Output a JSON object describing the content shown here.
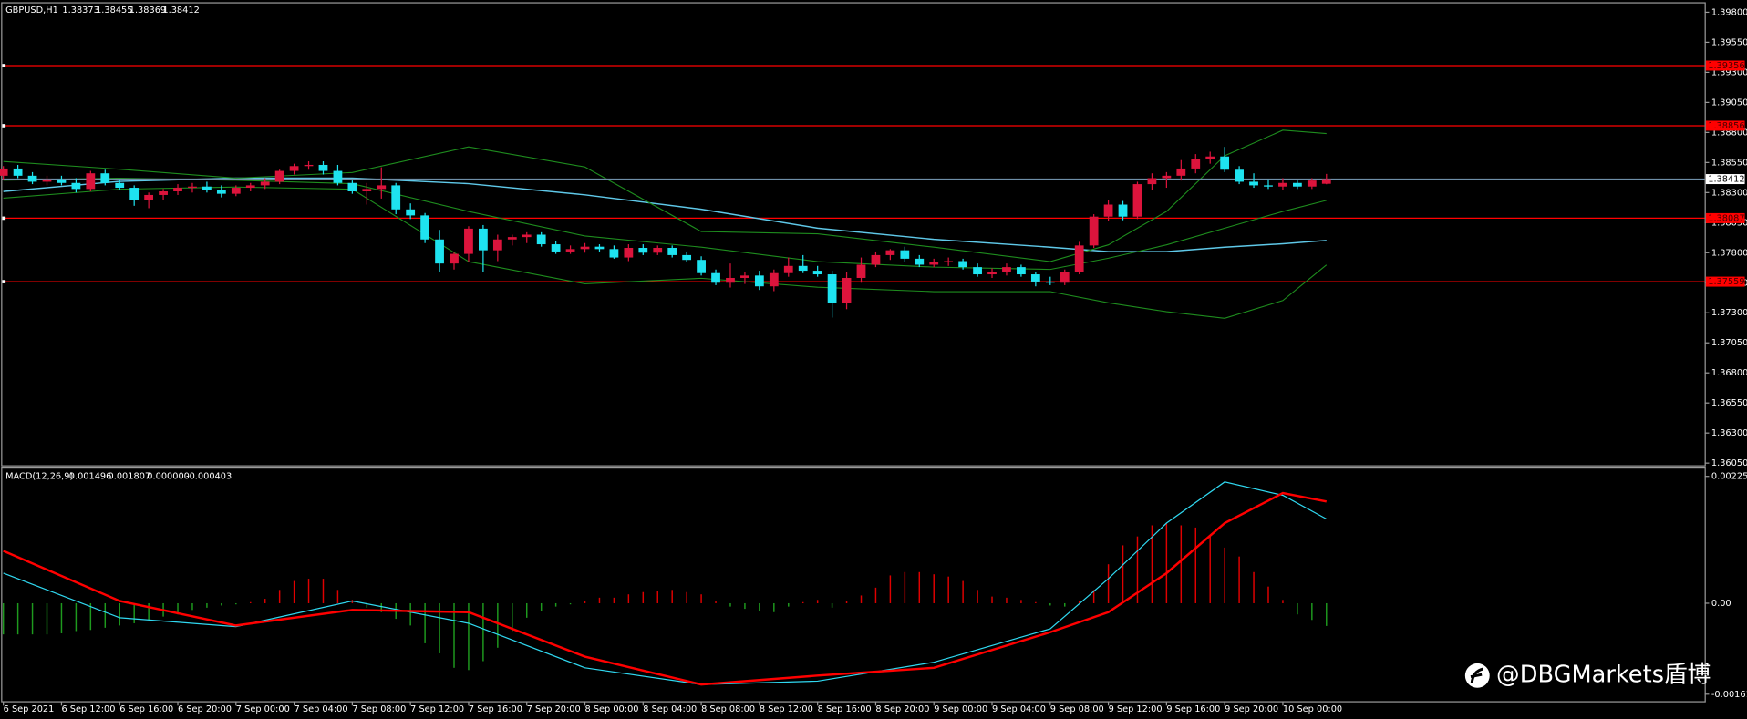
{
  "chart_data": [
    {
      "type": "candlestick",
      "symbol": "GBPUSD,H1",
      "categories": [
        "6 Sep 2021",
        null,
        null,
        null,
        "6 Sep 12:00",
        null,
        null,
        null,
        "6 Sep 16:00",
        null,
        null,
        null,
        "6 Sep 20:00",
        null,
        null,
        null,
        "7 Sep 00:00",
        null,
        null,
        null,
        "7 Sep 04:00",
        null,
        null,
        null,
        "7 Sep 08:00",
        null,
        null,
        null,
        "7 Sep 12:00",
        null,
        null,
        null,
        "7 Sep 16:00",
        null,
        null,
        null,
        "7 Sep 20:00",
        null,
        null,
        null,
        "8 Sep 00:00",
        null,
        null,
        null,
        "8 Sep 04:00",
        null,
        null,
        null,
        "8 Sep 08:00",
        null,
        null,
        null,
        "8 Sep 12:00",
        null,
        null,
        null,
        "8 Sep 16:00",
        null,
        null,
        null,
        "8 Sep 20:00",
        null,
        null,
        null,
        "9 Sep 00:00",
        null,
        null,
        null,
        "9 Sep 04:00",
        null,
        null,
        null,
        "9 Sep 08:00",
        null,
        null,
        null,
        "9 Sep 12:00",
        null,
        null,
        null,
        "9 Sep 16:00",
        null,
        null,
        null,
        "9 Sep 20:00",
        null,
        null,
        null,
        "10 Sep 00:00",
        null,
        null,
        null
      ],
      "open": [
        1.3844,
        1.385,
        1.3844,
        1.3839,
        1.3841,
        1.3838,
        1.3833,
        1.3846,
        1.3838,
        1.3834,
        1.3824,
        1.3828,
        1.3831,
        1.3834,
        1.3835,
        1.3832,
        1.3829,
        1.3834,
        1.3836,
        1.3839,
        1.3848,
        1.3852,
        1.3853,
        1.3848,
        1.3838,
        1.3831,
        1.3833,
        1.3836,
        1.3816,
        1.3811,
        1.3791,
        1.3771,
        1.3779,
        1.38,
        1.3782,
        1.3791,
        1.3793,
        1.3795,
        1.3787,
        1.3781,
        1.3783,
        1.3785,
        1.3783,
        1.3776,
        1.3784,
        1.378,
        1.3784,
        1.3778,
        1.3774,
        1.3763,
        1.3755,
        1.3759,
        1.3761,
        1.3752,
        1.3763,
        1.3769,
        1.3765,
        1.3762,
        1.3738,
        1.3759,
        1.377,
        1.3778,
        1.3782,
        1.3775,
        1.377,
        1.3772,
        1.3773,
        1.3768,
        1.3762,
        1.3764,
        1.3768,
        1.3762,
        1.3756,
        1.3755,
        1.3764,
        1.3786,
        1.381,
        1.382,
        1.381,
        1.3837,
        1.3842,
        1.3844,
        1.385,
        1.3858,
        1.386,
        1.3849,
        1.3839,
        1.3836,
        1.3835,
        1.3838,
        1.3835,
        1.38373
      ],
      "high": [
        1.3852,
        1.3853,
        1.3847,
        1.3844,
        1.3844,
        1.3842,
        1.3848,
        1.3849,
        1.3841,
        1.3836,
        1.383,
        1.3833,
        1.3837,
        1.3838,
        1.3839,
        1.3836,
        1.3836,
        1.3838,
        1.3842,
        1.3849,
        1.3854,
        1.3856,
        1.3856,
        1.3853,
        1.384,
        1.3838,
        1.3851,
        1.3838,
        1.3821,
        1.3813,
        1.3799,
        1.378,
        1.3802,
        1.3803,
        1.3795,
        1.3795,
        1.3797,
        1.3797,
        1.379,
        1.3786,
        1.3788,
        1.3787,
        1.3786,
        1.3787,
        1.3787,
        1.3786,
        1.3786,
        1.3781,
        1.3777,
        1.3766,
        1.3771,
        1.3764,
        1.3765,
        1.3766,
        1.3776,
        1.3778,
        1.3769,
        1.3765,
        1.3764,
        1.3776,
        1.3781,
        1.3783,
        1.3785,
        1.3778,
        1.3775,
        1.3776,
        1.3775,
        1.3771,
        1.3767,
        1.3771,
        1.377,
        1.3764,
        1.376,
        1.3766,
        1.3789,
        1.3812,
        1.3824,
        1.3823,
        1.3839,
        1.3846,
        1.3847,
        1.3857,
        1.3862,
        1.3864,
        1.3868,
        1.3852,
        1.3846,
        1.3841,
        1.3842,
        1.384,
        1.3842,
        1.38455
      ],
      "low": [
        1.3841,
        1.3842,
        1.3837,
        1.3836,
        1.3836,
        1.383,
        1.3831,
        1.3836,
        1.3832,
        1.3819,
        1.3817,
        1.3824,
        1.3828,
        1.383,
        1.383,
        1.3826,
        1.3827,
        1.3831,
        1.3833,
        1.3837,
        1.3845,
        1.3849,
        1.3845,
        1.3836,
        1.3829,
        1.382,
        1.3825,
        1.3812,
        1.3808,
        1.3788,
        1.3764,
        1.3766,
        1.3772,
        1.3764,
        1.3773,
        1.3786,
        1.3788,
        1.3785,
        1.3779,
        1.3779,
        1.378,
        1.3781,
        1.3775,
        1.3773,
        1.3778,
        1.3778,
        1.3776,
        1.3772,
        1.3761,
        1.3753,
        1.3751,
        1.3754,
        1.3749,
        1.3748,
        1.376,
        1.3763,
        1.376,
        1.3726,
        1.3733,
        1.3755,
        1.3768,
        1.3774,
        1.3772,
        1.3768,
        1.3768,
        1.3769,
        1.3766,
        1.376,
        1.3759,
        1.3761,
        1.376,
        1.3752,
        1.3753,
        1.3753,
        1.3762,
        1.3784,
        1.3806,
        1.3807,
        1.3808,
        1.3832,
        1.3834,
        1.384,
        1.3846,
        1.3854,
        1.3847,
        1.3837,
        1.3834,
        1.3833,
        1.3832,
        1.3833,
        1.3833,
        1.38369
      ],
      "close": [
        1.385,
        1.3844,
        1.3839,
        1.3841,
        1.3838,
        1.3833,
        1.3846,
        1.3838,
        1.3834,
        1.3824,
        1.3828,
        1.3831,
        1.3834,
        1.3835,
        1.3832,
        1.3829,
        1.3834,
        1.3836,
        1.3839,
        1.3848,
        1.3852,
        1.3853,
        1.3848,
        1.3838,
        1.3831,
        1.3833,
        1.3836,
        1.3816,
        1.3811,
        1.3791,
        1.3771,
        1.3779,
        1.38,
        1.3782,
        1.3791,
        1.3793,
        1.3795,
        1.3787,
        1.3781,
        1.3783,
        1.3785,
        1.3783,
        1.3776,
        1.3784,
        1.378,
        1.3784,
        1.3778,
        1.3774,
        1.3763,
        1.3755,
        1.3759,
        1.3761,
        1.3752,
        1.3763,
        1.3769,
        1.3765,
        1.3762,
        1.3738,
        1.3759,
        1.377,
        1.3778,
        1.3782,
        1.3775,
        1.377,
        1.3772,
        1.3773,
        1.3768,
        1.3762,
        1.3764,
        1.3768,
        1.3762,
        1.3756,
        1.3755,
        1.3764,
        1.3786,
        1.381,
        1.382,
        1.381,
        1.3837,
        1.3842,
        1.3844,
        1.385,
        1.3858,
        1.386,
        1.3849,
        1.3839,
        1.3836,
        1.3835,
        1.3838,
        1.3835,
        1.384,
        1.38412
      ],
      "bull_color": "#dc143c",
      "bear_color": "#1ee3f0",
      "ylim": [
        1.36032,
        1.39874
      ],
      "yticks": [
        {
          "value": 1.398,
          "label": "1.39800"
        },
        {
          "value": 1.3955,
          "label": "1.39550"
        },
        {
          "value": 1.393,
          "label": "1.39300"
        },
        {
          "value": 1.3905,
          "label": "1.39050"
        },
        {
          "value": 1.388,
          "label": "1.38800"
        },
        {
          "value": 1.3855,
          "label": "1.38550"
        },
        {
          "value": 1.383,
          "label": "1.38300"
        },
        {
          "value": 1.3805,
          "label": "1.38050"
        },
        {
          "value": 1.378,
          "label": "1.37800"
        },
        {
          "value": 1.3755,
          "label": "1.37550"
        },
        {
          "value": 1.373,
          "label": "1.37300"
        },
        {
          "value": 1.3705,
          "label": "1.37050"
        },
        {
          "value": 1.368,
          "label": "1.36800"
        },
        {
          "value": 1.3655,
          "label": "1.36550"
        },
        {
          "value": 1.363,
          "label": "1.36300"
        },
        {
          "value": 1.3605,
          "label": "1.36050"
        }
      ],
      "levels": [
        1.39356,
        1.38856,
        1.38087,
        1.37559
      ],
      "level_color": "#ff0000",
      "current_color": "#6f8fa8",
      "indicators": [
        {
          "color": "#5fc8e8",
          "x": [
            0,
            8,
            16,
            24,
            32,
            40,
            48,
            56,
            64,
            72,
            76,
            80,
            84,
            88,
            91
          ],
          "values": [
            1.38309,
            1.38393,
            1.3842,
            1.3842,
            1.38374,
            1.38281,
            1.38161,
            1.38004,
            1.37911,
            1.37846,
            1.37809,
            1.37809,
            1.37846,
            1.37874,
            1.37902
          ]
        },
        {
          "color": "#1e8c1e",
          "x": [
            0,
            8,
            16,
            24,
            32,
            40,
            48,
            56,
            64,
            72,
            76,
            80,
            84,
            88,
            91
          ],
          "values": [
            1.38559,
            1.38494,
            1.3842,
            1.38467,
            1.3868,
            1.38513,
            1.37976,
            1.37957,
            1.37846,
            1.37726,
            1.37865,
            1.38143,
            1.38606,
            1.38819,
            1.38791
          ]
        },
        {
          "color": "#1e8c1e",
          "x": [
            0,
            8,
            16,
            24,
            32,
            40,
            48,
            56,
            64,
            72,
            76,
            80,
            84,
            88,
            91
          ],
          "values": [
            1.38402,
            1.3842,
            1.38402,
            1.38374,
            1.38143,
            1.37939,
            1.37846,
            1.37726,
            1.3768,
            1.37661,
            1.37754,
            1.37865,
            1.38004,
            1.38143,
            1.38235
          ]
        },
        {
          "color": "#1e8c1e",
          "x": [
            0,
            8,
            16,
            24,
            32,
            40,
            48,
            56,
            64,
            72,
            76,
            80,
            84,
            88,
            91
          ],
          "values": [
            1.38254,
            1.38328,
            1.38346,
            1.38328,
            1.37726,
            1.37541,
            1.37587,
            1.37513,
            1.37476,
            1.37476,
            1.37383,
            1.37309,
            1.37254,
            1.37402,
            1.37698
          ]
        }
      ]
    },
    {
      "type": "macd",
      "title": "MACD(12,26,9)",
      "extra_buffer": "0.000000",
      "x": [
        0,
        8,
        16,
        24,
        32,
        40,
        48,
        56,
        64,
        72,
        76,
        80,
        84,
        88,
        91
      ],
      "main": {
        "color": "#30d8f0",
        "values": [
          0.000534,
          -0.000257,
          -0.000415,
          4e-05,
          -0.000356,
          -0.001146,
          -0.001442,
          -0.001383,
          -0.001047,
          -0.000454,
          0.000435,
          0.001423,
          0.002154,
          0.001917,
          0.001496
        ]
      },
      "signal": {
        "color": "#ff0000",
        "values": [
          0.000929,
          4e-05,
          -0.000395,
          -0.000119,
          -0.000158,
          -0.000948,
          -0.001442,
          -0.001284,
          -0.001146,
          -0.000514,
          -0.000158,
          0.000534,
          0.001423,
          0.001956,
          0.001807
        ]
      },
      "histogram": {
        "up_color": "#e00000",
        "down_color": "#1e9a1e",
        "values": [
          -0.000553,
          -0.000553,
          -0.000553,
          -0.000553,
          -0.000534,
          -0.000494,
          -0.000474,
          -0.000435,
          -0.000395,
          -0.000356,
          -0.000296,
          -0.000237,
          -0.000198,
          -0.000119,
          -7.9e-05,
          -4e-05,
          -2e-05,
          2e-05,
          7.9e-05,
          0.000237,
          0.000395,
          0.000435,
          0.000435,
          0.000237,
          5.9e-05,
          -7.9e-05,
          -0.000158,
          -0.000277,
          -0.000395,
          -0.000711,
          -0.000889,
          -0.001146,
          -0.001186,
          -0.001028,
          -0.00079,
          -0.000494,
          -0.000257,
          -0.000138,
          -5.9e-05,
          -2e-05,
          4e-05,
          9.9e-05,
          9.9e-05,
          0.000158,
          0.000198,
          0.000217,
          0.000237,
          0.000198,
          0.000158,
          4e-05,
          -5.9e-05,
          -9.9e-05,
          -0.000138,
          -0.000158,
          -5.9e-05,
          2e-05,
          5.9e-05,
          -7.9e-05,
          4e-05,
          0.000138,
          0.000277,
          0.000494,
          0.000553,
          0.000553,
          0.000514,
          0.000474,
          0.000395,
          0.000237,
          0.000119,
          9.9e-05,
          5.9e-05,
          2e-05,
          -4e-05,
          -5.9e-05,
          4e-05,
          0.000237,
          0.000692,
          0.001028,
          0.001186,
          0.001383,
          0.001423,
          0.001383,
          0.001344,
          0.001186,
          0.000988,
          0.00083,
          0.000553,
          0.000296,
          5.9e-05,
          -0.000198,
          -0.000296,
          -0.000403
        ]
      },
      "ylim": [
        -0.001739,
        0.002391
      ],
      "yticks": [
        0.002253,
        {
          "value": 0,
          "label": "0.00"
        },
        -0.001615
      ]
    }
  ],
  "watermark": "@DBGMarkets盾博"
}
